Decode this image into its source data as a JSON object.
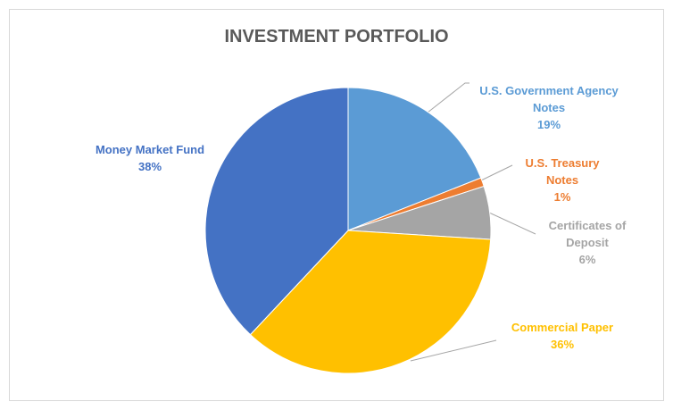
{
  "chart_data": {
    "type": "pie",
    "title": "INVESTMENT PORTFOLIO",
    "categories": [
      "U.S. Government Agency Notes",
      "U.S. Treasury Notes",
      "Certificates of Deposit",
      "Commercial Paper",
      "Money Market Fund"
    ],
    "values": [
      19,
      1,
      6,
      36,
      38
    ],
    "value_labels": [
      "19%",
      "1%",
      "6%",
      "36%",
      "38%"
    ],
    "colors": [
      "#5b9bd5",
      "#ed7d31",
      "#a5a5a5",
      "#ffc000",
      "#4472c4"
    ]
  }
}
